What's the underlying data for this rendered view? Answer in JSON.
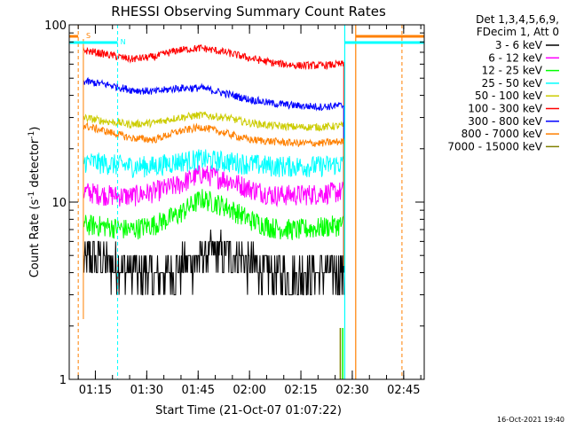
{
  "chart_data": {
    "type": "line",
    "title": "RHESSI Observing Summary Count Rates",
    "xlabel": "Start Time (21-Oct-07 01:07:22)",
    "ylabel": "Count Rate (s",
    "ylabel_sup": "-1",
    "ylabel_tail": " detector",
    "ylabel_sup2": "-1",
    "ylabel_close": ")",
    "y_scale": "log",
    "ylim": [
      1,
      100
    ],
    "y_ticks": [
      {
        "value": 1,
        "label": "1"
      },
      {
        "value": 10,
        "label": "10"
      },
      {
        "value": 100,
        "label": "100"
      }
    ],
    "x_start_min": 67.37,
    "x_end_min": 171.0,
    "x_ticks": [
      {
        "minute": 75,
        "label": "01:15"
      },
      {
        "minute": 90,
        "label": "01:30"
      },
      {
        "minute": 105,
        "label": "01:45"
      },
      {
        "minute": 120,
        "label": "02:00"
      },
      {
        "minute": 135,
        "label": "02:15"
      },
      {
        "minute": 150,
        "label": "02:30"
      },
      {
        "minute": 165,
        "label": "02:45"
      }
    ],
    "legend_header": [
      "Det 1,3,4,5,6,9,",
      "FDecim 1, Att 0"
    ],
    "legend_position": "right",
    "timestamp": "16-Oct-2021 19:40",
    "series": [
      {
        "name": "3 - 6 keV",
        "color": "#000000",
        "values": [
          5,
          4.6,
          4.2,
          3.8,
          4.2,
          5.0,
          5.3,
          4.6,
          4.0,
          3.9,
          4.1,
          4.0
        ]
      },
      {
        "name": "6 - 12 keV",
        "color": "#ff00ff",
        "values": [
          11.5,
          11.0,
          10.8,
          11.5,
          12.5,
          14.5,
          13.5,
          12.0,
          11.0,
          11.0,
          11.2,
          11.5
        ]
      },
      {
        "name": "12 - 25 keV",
        "color": "#00ff00",
        "values": [
          7.5,
          7.3,
          7.0,
          7.5,
          8.5,
          10.5,
          9.5,
          8.0,
          7.2,
          7.0,
          7.2,
          7.5
        ]
      },
      {
        "name": "25 - 50 keV",
        "color": "#00ffff",
        "values": [
          17,
          16.5,
          16,
          16,
          17,
          17.5,
          17,
          16.5,
          16,
          16,
          16,
          16.5
        ]
      },
      {
        "name": "50 - 100 keV",
        "color": "#cccc00",
        "values": [
          30,
          28.5,
          27.5,
          28,
          30,
          31,
          30,
          28,
          27,
          26.5,
          26.5,
          27
        ]
      },
      {
        "name": "100 - 300 keV",
        "color": "#ff0000",
        "values": [
          72,
          68,
          64,
          66,
          72,
          74,
          70,
          65,
          61,
          59,
          59,
          60
        ]
      },
      {
        "name": "300 - 800 keV",
        "color": "#0000ff",
        "values": [
          48,
          46,
          43,
          42,
          44,
          44,
          41,
          38,
          36,
          35,
          34.5,
          35
        ]
      },
      {
        "name": "800 - 7000 keV",
        "color": "#ff8000",
        "values": [
          27,
          25,
          23,
          22.5,
          25,
          26.5,
          24.5,
          22.5,
          22,
          21.5,
          21.5,
          22
        ]
      },
      {
        "name": "7000 - 15000 keV",
        "color": "#808000",
        "values": []
      }
    ],
    "series_start_min": 71.5,
    "series_end_min": 147.5
  }
}
